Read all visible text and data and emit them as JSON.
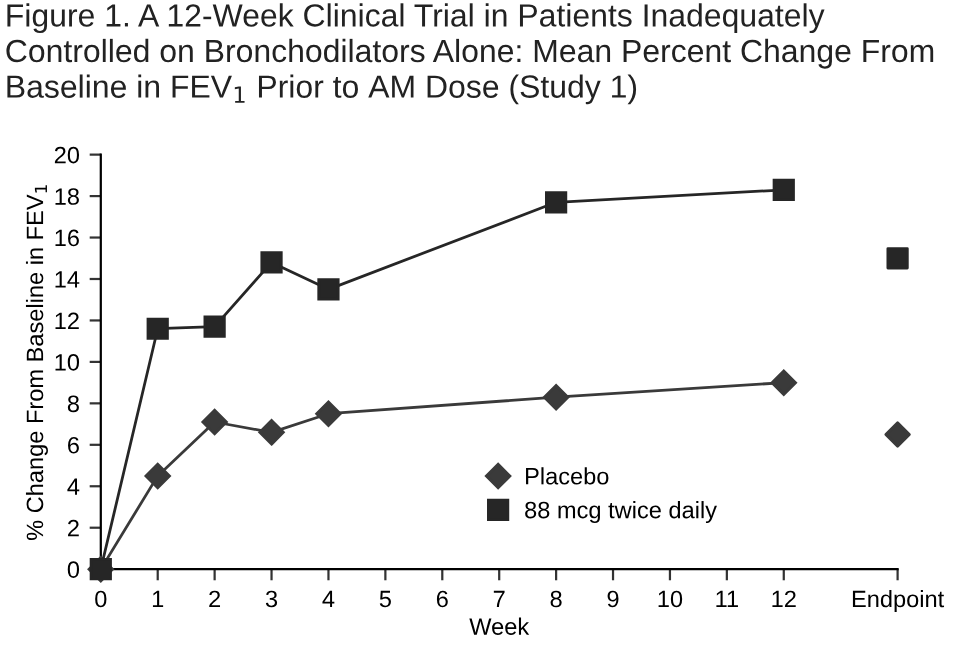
{
  "chart_data": {
    "type": "line",
    "title": "Figure 1. A 12-Week Clinical Trial in Patients Inadequately Controlled on Bronchodilators Alone: Mean Percent Change From Baseline in FEV$_{1}$ Prior to AM Dose (Study 1)",
    "xlabel": "Week",
    "ylabel": "% Change From Baseline in FEV$_{1}$",
    "xlim": [
      0,
      14
    ],
    "xticks": [
      0,
      1,
      2,
      3,
      4,
      5,
      6,
      7,
      8,
      9,
      10,
      11,
      12,
      {
        "value": 14,
        "label": "Endpoint"
      }
    ],
    "ylim": [
      0,
      20
    ],
    "yticks": [
      0,
      2,
      4,
      6,
      8,
      10,
      12,
      14,
      16,
      18,
      20
    ],
    "grid": false,
    "legend": "bottom right",
    "series": [
      {
        "name": "Placebo",
        "color": "#3a3a3a",
        "marker": "diamond",
        "x": [
          0,
          1,
          2,
          3,
          4,
          8,
          12
        ],
        "values": [
          0,
          4.5,
          7.1,
          6.6,
          7.5,
          8.3,
          9.0
        ]
      },
      {
        "name": "88 mcg twice daily",
        "color": "#262626",
        "marker": "square",
        "x": [
          0,
          1,
          2,
          3,
          4,
          8,
          12
        ],
        "values": [
          0,
          11.6,
          11.7,
          14.8,
          13.5,
          17.7,
          18.3
        ]
      },
      {
        "type": "scatter",
        "color": "#3a3a3a",
        "marker": "diamond",
        "x": [
          14
        ],
        "values": [
          6.5
        ]
      },
      {
        "type": "scatter",
        "color": "#262626",
        "marker": "square",
        "x": [
          14
        ],
        "values": [
          15.0
        ]
      }
    ]
  }
}
